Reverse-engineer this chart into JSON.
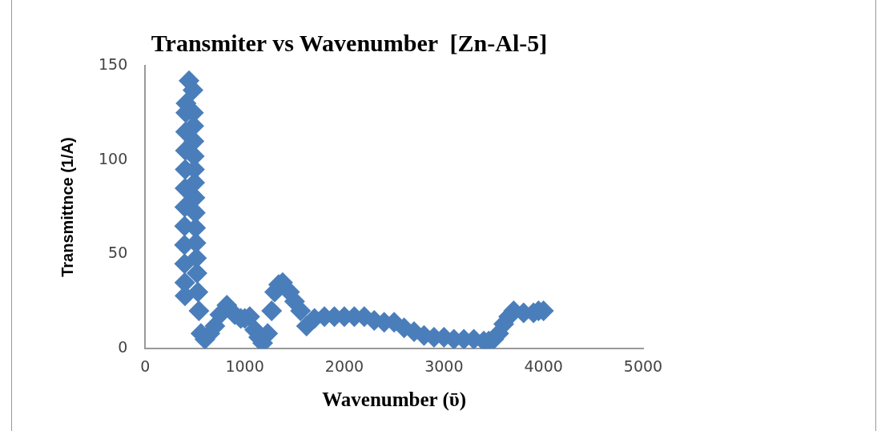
{
  "chart_data": {
    "type": "scatter",
    "title": "Transmiter vs Wavenumber  [Zn-Al-5]",
    "xlabel": "Wavenumber (ῡ)",
    "ylabel": "Transmittnce (1/A)",
    "x": [
      400,
      398,
      396,
      395,
      396,
      398,
      400,
      402,
      404,
      406,
      408,
      410,
      440,
      480,
      485,
      488,
      490,
      493,
      495,
      497,
      500,
      503,
      506,
      510,
      515,
      520,
      530,
      540,
      560,
      600,
      650,
      700,
      750,
      820,
      900,
      960,
      1000,
      1050,
      1100,
      1140,
      1180,
      1230,
      1270,
      1300,
      1340,
      1380,
      1450,
      1500,
      1560,
      1620,
      1700,
      1800,
      1900,
      2000,
      2100,
      2200,
      2300,
      2400,
      2500,
      2600,
      2700,
      2800,
      2900,
      3000,
      3100,
      3200,
      3300,
      3400,
      3450,
      3500,
      3550,
      3600,
      3650,
      3700,
      3800,
      3900,
      3950,
      4000
    ],
    "values": [
      28,
      35,
      45,
      55,
      65,
      75,
      85,
      95,
      105,
      115,
      125,
      130,
      142,
      137,
      125,
      118,
      110,
      102,
      95,
      88,
      80,
      72,
      64,
      56,
      48,
      40,
      30,
      20,
      8,
      5,
      8,
      12,
      18,
      23,
      18,
      16,
      16,
      17,
      10,
      6,
      3,
      8,
      20,
      30,
      34,
      35,
      30,
      25,
      20,
      12,
      16,
      17,
      17,
      17,
      17,
      17,
      15,
      14,
      14,
      11,
      9,
      7,
      6,
      6,
      5,
      5,
      5,
      4,
      4,
      5,
      8,
      13,
      17,
      20,
      19,
      19,
      20,
      20
    ],
    "color": "#4a7ebb",
    "marker": "diamond",
    "xlim": [
      0,
      5000
    ],
    "xticks": [
      0,
      1000,
      2000,
      3000,
      4000,
      5000
    ],
    "ylim": [
      0,
      150
    ],
    "yticks": [
      0,
      50,
      100,
      150
    ],
    "grid": false,
    "legend": false
  }
}
